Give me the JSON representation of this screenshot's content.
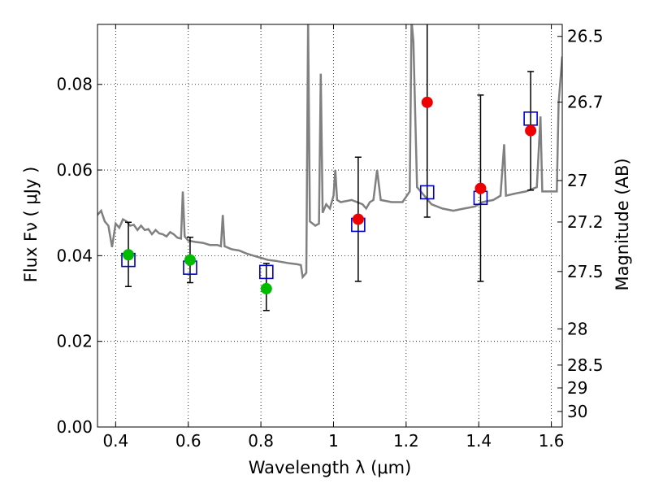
{
  "chart_data": {
    "type": "scatter",
    "title": "",
    "xlabel": "Wavelength  λ (μm)",
    "ylabel": "Flux  Fν ( μJy )",
    "ylabel_right": "Magnitude (AB)",
    "xlim": [
      0.35,
      1.63
    ],
    "ylim": [
      0.0,
      0.094
    ],
    "grid": true,
    "x_ticks": [
      0.4,
      0.6,
      0.8,
      1.0,
      1.2,
      1.4,
      1.6
    ],
    "x_tick_labels": [
      "0.4",
      "0.6",
      "0.8",
      "1",
      "1.2",
      "1.4",
      "1.6"
    ],
    "y_ticks": [
      0.0,
      0.02,
      0.04,
      0.06,
      0.08
    ],
    "y_tick_labels": [
      "0.00",
      "0.02",
      "0.04",
      "0.06",
      "0.08"
    ],
    "right_ticks": [
      {
        "label": "26.5",
        "mag": 26.5
      },
      {
        "label": "26.7",
        "mag": 26.7
      },
      {
        "label": "27",
        "mag": 27.0
      },
      {
        "label": "27.2",
        "mag": 27.2
      },
      {
        "label": "27.5",
        "mag": 27.5
      },
      {
        "label": "28",
        "mag": 28.0
      },
      {
        "label": "28.5",
        "mag": 28.5
      },
      {
        "label": "29",
        "mag": 29.0
      },
      {
        "label": "30",
        "mag": 30.0
      }
    ],
    "colors": {
      "model": "#808080",
      "model_points": "#0000cc",
      "optical": "#00bb00",
      "nir": "#ee0000",
      "errorbar": "#000000"
    },
    "model_spectrum": [
      [
        0.35,
        0.0495
      ],
      [
        0.36,
        0.0505
      ],
      [
        0.37,
        0.048
      ],
      [
        0.38,
        0.047
      ],
      [
        0.39,
        0.042
      ],
      [
        0.4,
        0.0475
      ],
      [
        0.41,
        0.0465
      ],
      [
        0.42,
        0.0485
      ],
      [
        0.43,
        0.048
      ],
      [
        0.44,
        0.047
      ],
      [
        0.45,
        0.0472
      ],
      [
        0.46,
        0.046
      ],
      [
        0.47,
        0.047
      ],
      [
        0.48,
        0.046
      ],
      [
        0.49,
        0.0462
      ],
      [
        0.5,
        0.045
      ],
      [
        0.51,
        0.046
      ],
      [
        0.52,
        0.0452
      ],
      [
        0.53,
        0.045
      ],
      [
        0.54,
        0.0445
      ],
      [
        0.55,
        0.0455
      ],
      [
        0.56,
        0.045
      ],
      [
        0.57,
        0.0442
      ],
      [
        0.58,
        0.044
      ],
      [
        0.585,
        0.055
      ],
      [
        0.59,
        0.0445
      ],
      [
        0.6,
        0.0435
      ],
      [
        0.62,
        0.0432
      ],
      [
        0.64,
        0.043
      ],
      [
        0.66,
        0.0425
      ],
      [
        0.68,
        0.0425
      ],
      [
        0.69,
        0.0422
      ],
      [
        0.695,
        0.0495
      ],
      [
        0.7,
        0.0422
      ],
      [
        0.72,
        0.0415
      ],
      [
        0.74,
        0.0412
      ],
      [
        0.76,
        0.0405
      ],
      [
        0.78,
        0.04
      ],
      [
        0.8,
        0.0395
      ],
      [
        0.82,
        0.039
      ],
      [
        0.84,
        0.0388
      ],
      [
        0.86,
        0.0385
      ],
      [
        0.88,
        0.0382
      ],
      [
        0.9,
        0.038
      ],
      [
        0.91,
        0.0378
      ],
      [
        0.915,
        0.035
      ],
      [
        0.925,
        0.036
      ],
      [
        0.93,
        0.095
      ],
      [
        0.935,
        0.048
      ],
      [
        0.95,
        0.047
      ],
      [
        0.96,
        0.0475
      ],
      [
        0.965,
        0.0825
      ],
      [
        0.97,
        0.05
      ],
      [
        0.98,
        0.052
      ],
      [
        0.99,
        0.051
      ],
      [
        1.0,
        0.054
      ],
      [
        1.005,
        0.06
      ],
      [
        1.01,
        0.053
      ],
      [
        1.02,
        0.0525
      ],
      [
        1.05,
        0.053
      ],
      [
        1.08,
        0.052
      ],
      [
        1.09,
        0.051
      ],
      [
        1.1,
        0.0525
      ],
      [
        1.11,
        0.053
      ],
      [
        1.12,
        0.06
      ],
      [
        1.13,
        0.053
      ],
      [
        1.16,
        0.0525
      ],
      [
        1.19,
        0.0525
      ],
      [
        1.21,
        0.055
      ],
      [
        1.215,
        0.095
      ],
      [
        1.22,
        0.09
      ],
      [
        1.23,
        0.056
      ],
      [
        1.25,
        0.054
      ],
      [
        1.27,
        0.052
      ],
      [
        1.3,
        0.051
      ],
      [
        1.33,
        0.0505
      ],
      [
        1.36,
        0.051
      ],
      [
        1.39,
        0.0515
      ],
      [
        1.41,
        0.0525
      ],
      [
        1.44,
        0.053
      ],
      [
        1.46,
        0.054
      ],
      [
        1.47,
        0.066
      ],
      [
        1.475,
        0.054
      ],
      [
        1.5,
        0.0545
      ],
      [
        1.53,
        0.055
      ],
      [
        1.56,
        0.056
      ],
      [
        1.57,
        0.0725
      ],
      [
        1.575,
        0.055
      ],
      [
        1.6,
        0.055
      ],
      [
        1.615,
        0.055
      ],
      [
        1.62,
        0.0755
      ],
      [
        1.63,
        0.0865
      ]
    ],
    "model_points": [
      {
        "x": 0.435,
        "y": 0.039
      },
      {
        "x": 0.605,
        "y": 0.0372
      },
      {
        "x": 0.815,
        "y": 0.0362
      },
      {
        "x": 1.068,
        "y": 0.0472
      },
      {
        "x": 1.258,
        "y": 0.0548
      },
      {
        "x": 1.405,
        "y": 0.0535
      },
      {
        "x": 1.543,
        "y": 0.072
      }
    ],
    "observed_points": [
      {
        "x": 0.435,
        "y": 0.0402,
        "err": [
          0.0328,
          0.0478
        ],
        "band": "optical"
      },
      {
        "x": 0.605,
        "y": 0.039,
        "err": [
          0.0337,
          0.0443
        ],
        "band": "optical"
      },
      {
        "x": 0.815,
        "y": 0.0323,
        "err": [
          0.0272,
          0.0382
        ],
        "band": "optical"
      },
      {
        "x": 1.068,
        "y": 0.0485,
        "err": [
          0.034,
          0.063
        ],
        "band": "nir"
      },
      {
        "x": 1.258,
        "y": 0.0758,
        "err": [
          0.049,
          0.094
        ],
        "band": "nir"
      },
      {
        "x": 1.405,
        "y": 0.0557,
        "err": [
          0.034,
          0.0775
        ],
        "band": "nir"
      },
      {
        "x": 1.543,
        "y": 0.0692,
        "err": [
          0.0553,
          0.083
        ],
        "band": "nir"
      }
    ]
  }
}
